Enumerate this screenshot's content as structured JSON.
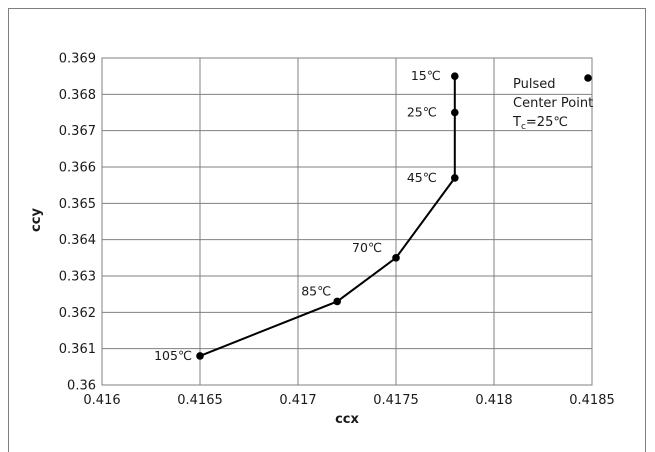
{
  "chart_data": {
    "type": "scatter",
    "xlabel": "ccx",
    "ylabel": "ccy",
    "xlim": [
      0.416,
      0.4185
    ],
    "ylim": [
      0.36,
      0.369
    ],
    "x_ticks": [
      "0.416",
      "0.4165",
      "0.417",
      "0.4175",
      "0.418",
      "0.4185"
    ],
    "y_ticks": [
      "0.36",
      "0.361",
      "0.362",
      "0.363",
      "0.364",
      "0.365",
      "0.366",
      "0.367",
      "0.368",
      "0.369"
    ],
    "grid": true,
    "series": [
      {
        "points": [
          {
            "x": 0.4165,
            "y": 0.3608,
            "label": "105℃"
          },
          {
            "x": 0.4172,
            "y": 0.3623,
            "label": "85℃"
          },
          {
            "x": 0.4175,
            "y": 0.3635,
            "label": "70℃"
          },
          {
            "x": 0.4178,
            "y": 0.3657,
            "label": "45℃"
          },
          {
            "x": 0.4178,
            "y": 0.3675,
            "label": "25℃"
          },
          {
            "x": 0.4178,
            "y": 0.3685,
            "label": "15℃"
          }
        ],
        "color": "#000000",
        "connected": true
      },
      {
        "points": [
          {
            "x": 0.4184,
            "y": 0.3684
          }
        ],
        "color": "#000000",
        "connected": false
      }
    ],
    "legend": {
      "line1": "Pulsed",
      "line2": "Center Point",
      "line3_main": "T",
      "line3_sub": "c",
      "line3_rest": "=25℃"
    }
  }
}
